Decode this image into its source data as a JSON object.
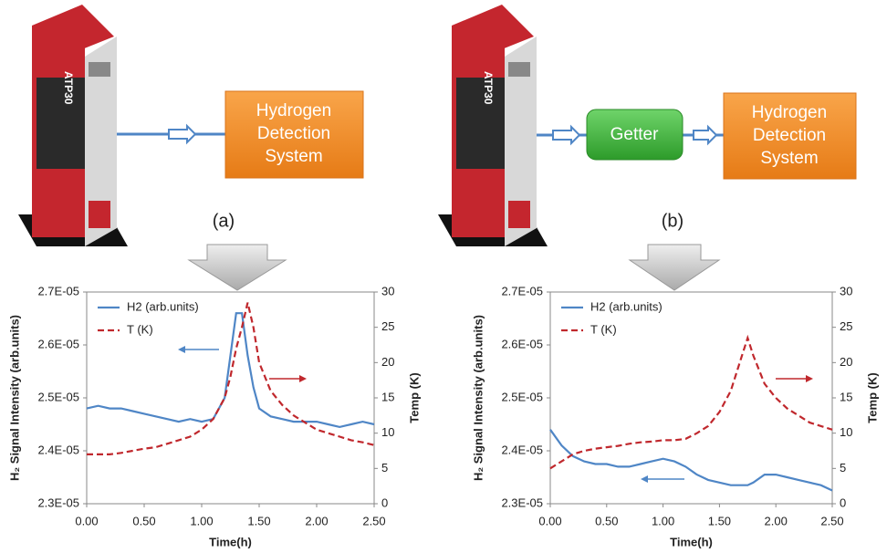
{
  "figures": [
    {
      "label": "(a)",
      "instrument": "ATP30",
      "boxes": [
        [
          "Hydrogen",
          "Detection",
          "System"
        ]
      ]
    },
    {
      "label": "(b)",
      "instrument": "ATP30",
      "boxes": [
        [
          "Getter"
        ],
        [
          "Hydrogen",
          "Detection",
          "System"
        ]
      ]
    }
  ],
  "chart_data": [
    {
      "type": "line",
      "x_label": "Time(h)",
      "y_label": "H₂ Signal Intensity (arb.units)",
      "y2_label": "Temp (K)",
      "x": [
        0,
        0.1,
        0.2,
        0.3,
        0.4,
        0.5,
        0.6,
        0.7,
        0.8,
        0.9,
        1.0,
        1.1,
        1.2,
        1.25,
        1.3,
        1.35,
        1.4,
        1.45,
        1.5,
        1.6,
        1.7,
        1.8,
        1.9,
        2.0,
        2.1,
        2.2,
        2.3,
        2.4,
        2.5
      ],
      "series": [
        {
          "name": "H2 (arb.units)",
          "color": "#4f86c6",
          "style": "solid",
          "values": [
            2.48e-05,
            2.485e-05,
            2.48e-05,
            2.48e-05,
            2.475e-05,
            2.47e-05,
            2.465e-05,
            2.46e-05,
            2.455e-05,
            2.46e-05,
            2.455e-05,
            2.46e-05,
            2.5e-05,
            2.58e-05,
            2.66e-05,
            2.66e-05,
            2.58e-05,
            2.52e-05,
            2.48e-05,
            2.465e-05,
            2.46e-05,
            2.455e-05,
            2.455e-05,
            2.455e-05,
            2.45e-05,
            2.445e-05,
            2.45e-05,
            2.455e-05,
            2.45e-05
          ]
        },
        {
          "name": "T (K)",
          "color": "#c0282d",
          "style": "dashed",
          "axis": "y2",
          "values": [
            7,
            7,
            7,
            7.2,
            7.5,
            7.8,
            8,
            8.5,
            9,
            9.5,
            10.5,
            12,
            15,
            18,
            22,
            25,
            28.5,
            25,
            20,
            16,
            14,
            12.5,
            11.5,
            10.5,
            10,
            9.5,
            9,
            8.7,
            8.3
          ]
        }
      ],
      "xlim": [
        0,
        2.5
      ],
      "xticks": [
        {
          "value": 0,
          "label": "0.00"
        },
        {
          "value": 0.5,
          "label": "0.50"
        },
        {
          "value": 1,
          "label": "1.00"
        },
        {
          "value": 1.5,
          "label": "1.50"
        },
        {
          "value": 2,
          "label": "2.00"
        },
        {
          "value": 2.5,
          "label": "2.50"
        }
      ],
      "ylim": [
        2.3e-05,
        2.7e-05
      ],
      "yticks": [
        {
          "value": 2.3e-05,
          "label": "2.3E-05"
        },
        {
          "value": 2.4e-05,
          "label": "2.4E-05"
        },
        {
          "value": 2.5e-05,
          "label": "2.5E-05"
        },
        {
          "value": 2.6e-05,
          "label": "2.6E-05"
        },
        {
          "value": 2.7e-05,
          "label": "2.7E-05"
        }
      ],
      "y2lim": [
        0,
        30
      ],
      "y2ticks": [
        0,
        5,
        10,
        15,
        20,
        25,
        30
      ]
    },
    {
      "type": "line",
      "x_label": "Time(h)",
      "y_label": "H₂ Signal Intensity (arb.units)",
      "y2_label": "Temp (K)",
      "x": [
        0,
        0.1,
        0.2,
        0.3,
        0.4,
        0.5,
        0.6,
        0.7,
        0.8,
        0.9,
        1.0,
        1.1,
        1.2,
        1.3,
        1.4,
        1.5,
        1.6,
        1.7,
        1.75,
        1.8,
        1.9,
        2.0,
        2.1,
        2.2,
        2.3,
        2.4,
        2.5
      ],
      "series": [
        {
          "name": "H2 (arb.units)",
          "color": "#4f86c6",
          "style": "solid",
          "values": [
            2.44e-05,
            2.41e-05,
            2.39e-05,
            2.38e-05,
            2.375e-05,
            2.375e-05,
            2.37e-05,
            2.37e-05,
            2.375e-05,
            2.38e-05,
            2.385e-05,
            2.38e-05,
            2.37e-05,
            2.355e-05,
            2.345e-05,
            2.34e-05,
            2.335e-05,
            2.335e-05,
            2.335e-05,
            2.34e-05,
            2.355e-05,
            2.355e-05,
            2.35e-05,
            2.345e-05,
            2.34e-05,
            2.335e-05,
            2.325e-05
          ]
        },
        {
          "name": "T (K)",
          "color": "#c0282d",
          "style": "dashed",
          "axis": "y2",
          "values": [
            5,
            6,
            7,
            7.5,
            7.8,
            8,
            8.2,
            8.5,
            8.7,
            8.8,
            9,
            9,
            9.2,
            10,
            11,
            13,
            16,
            21,
            23.5,
            21,
            17,
            15,
            13.5,
            12.5,
            11.5,
            11,
            10.5
          ]
        }
      ],
      "xlim": [
        0,
        2.5
      ],
      "xticks": [
        {
          "value": 0,
          "label": "0.00"
        },
        {
          "value": 0.5,
          "label": "0.50"
        },
        {
          "value": 1,
          "label": "1.00"
        },
        {
          "value": 1.5,
          "label": "1.50"
        },
        {
          "value": 2,
          "label": "2.00"
        },
        {
          "value": 2.5,
          "label": "2.50"
        }
      ],
      "ylim": [
        2.3e-05,
        2.7e-05
      ],
      "yticks": [
        {
          "value": 2.3e-05,
          "label": "2.3E-05"
        },
        {
          "value": 2.4e-05,
          "label": "2.4E-05"
        },
        {
          "value": 2.5e-05,
          "label": "2.5E-05"
        },
        {
          "value": 2.6e-05,
          "label": "2.6E-05"
        },
        {
          "value": 2.7e-05,
          "label": "2.7E-05"
        }
      ],
      "y2lim": [
        0,
        30
      ],
      "y2ticks": [
        0,
        5,
        10,
        15,
        20,
        25,
        30
      ]
    }
  ]
}
